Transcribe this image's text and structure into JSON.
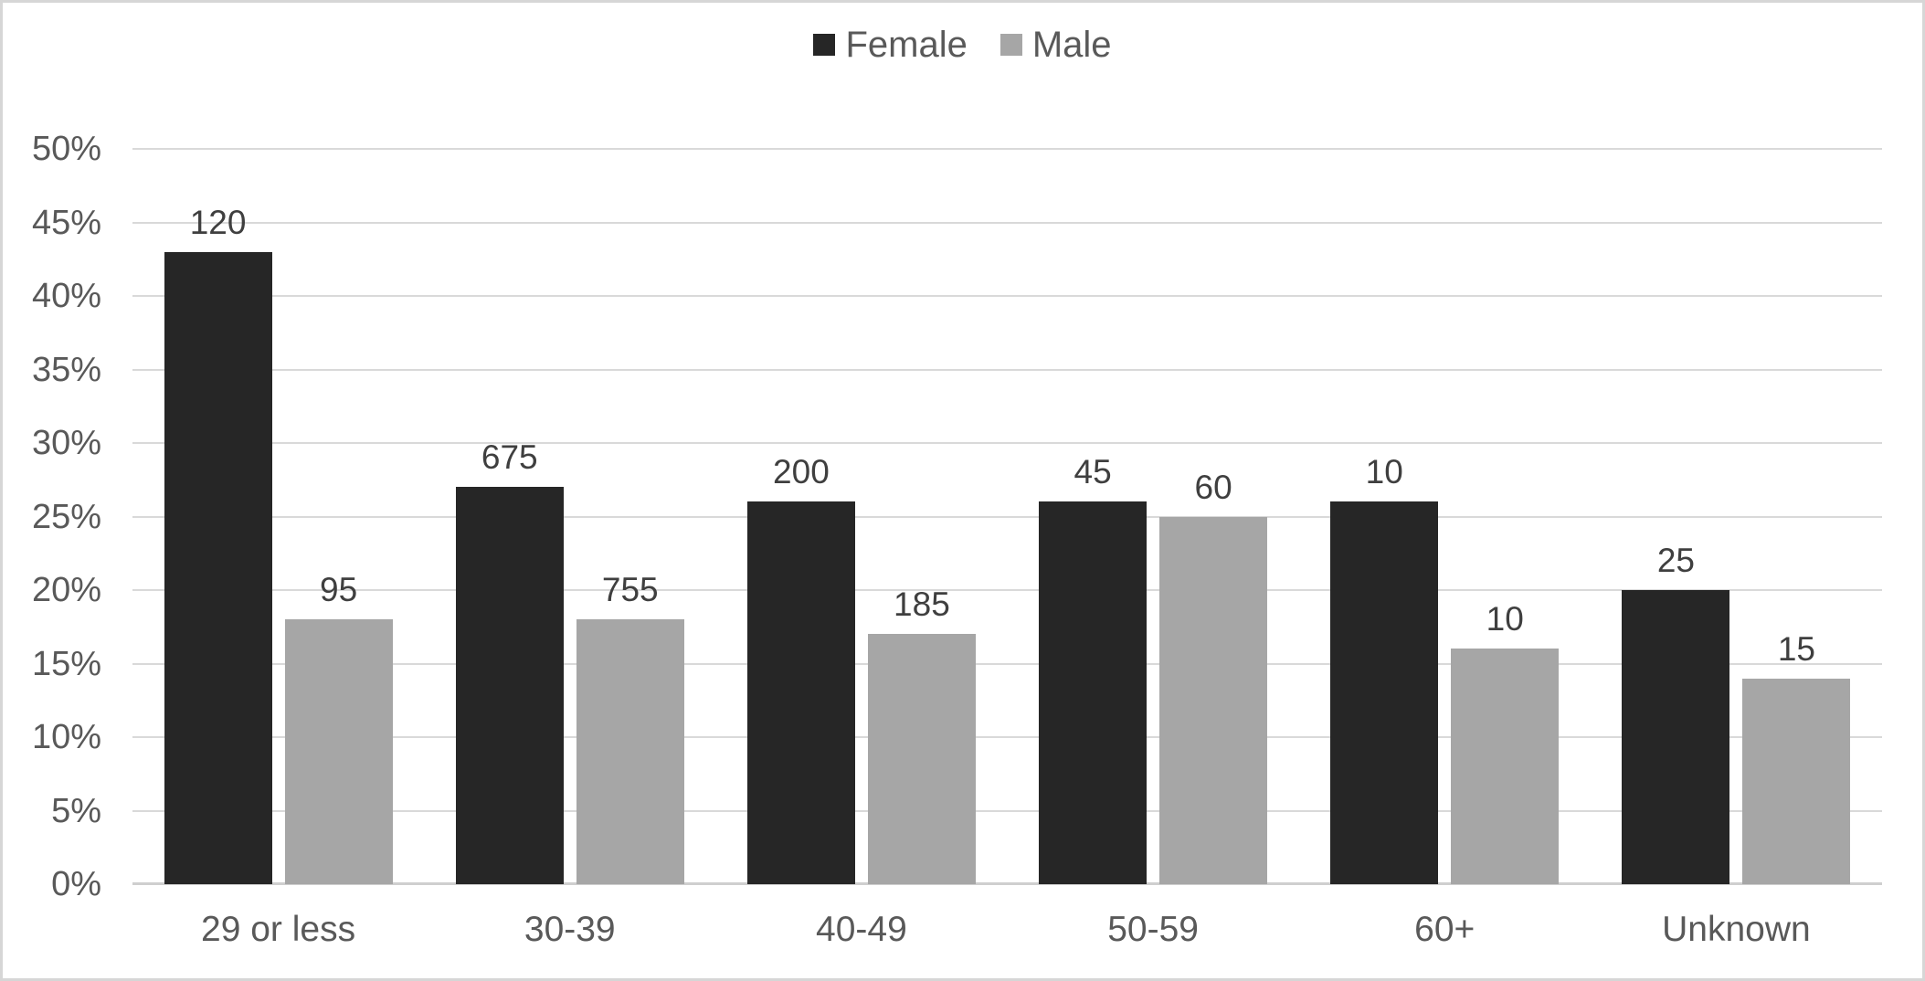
{
  "chart_data": {
    "type": "bar",
    "title": "",
    "xlabel": "",
    "ylabel": "",
    "categories": [
      "29 or less",
      "30-39",
      "40-49",
      "50-59",
      "60+",
      "Unknown"
    ],
    "series": [
      {
        "name": "Female",
        "color": "#262626",
        "values_pct": [
          43,
          27,
          26,
          26,
          26,
          20
        ],
        "data_labels": [
          "120",
          "675",
          "200",
          "45",
          "10",
          "25"
        ]
      },
      {
        "name": "Male",
        "color": "#a6a6a6",
        "values_pct": [
          18,
          18,
          17,
          25,
          16,
          14
        ],
        "data_labels": [
          "95",
          "755",
          "185",
          "60",
          "10",
          "15"
        ]
      }
    ],
    "y_axis": {
      "min": 0,
      "max": 50,
      "step": 5,
      "tick_labels": [
        "0%",
        "5%",
        "10%",
        "15%",
        "20%",
        "25%",
        "30%",
        "35%",
        "40%",
        "45%",
        "50%"
      ],
      "format": "percent"
    },
    "legend": {
      "position": "top-center",
      "entries": [
        "Female",
        "Male"
      ]
    },
    "grid": true,
    "style_colors": {
      "gridline": "#d9d9d9",
      "axis_line": "#cfcfcf",
      "axis_text": "#595959",
      "data_label_text": "#3f3f3f",
      "background": "#ffffff",
      "border": "#d6d6d6"
    }
  }
}
